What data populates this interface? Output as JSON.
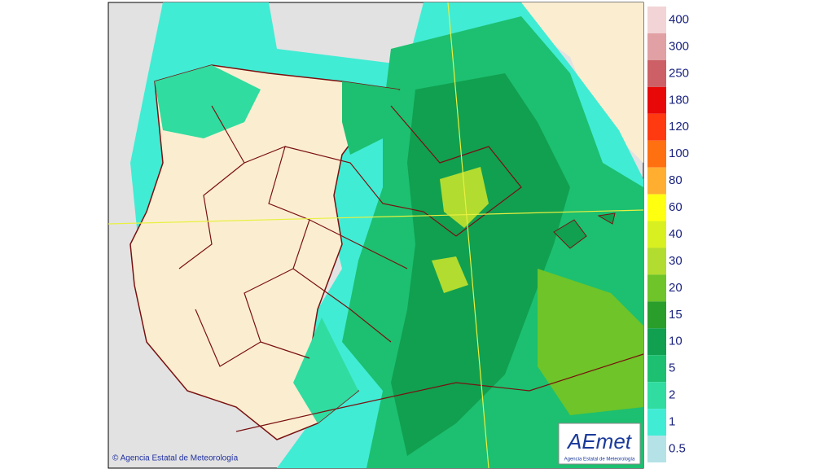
{
  "legend": {
    "levels": [
      {
        "value": 400,
        "color": "#f2d4d6"
      },
      {
        "value": 300,
        "color": "#e0a0a4"
      },
      {
        "value": 250,
        "color": "#cc6066"
      },
      {
        "value": 180,
        "color": "#e80808"
      },
      {
        "value": 120,
        "color": "#ff3a10"
      },
      {
        "value": 100,
        "color": "#ff7010"
      },
      {
        "value": 80,
        "color": "#ffae30"
      },
      {
        "value": 60,
        "color": "#ffff10"
      },
      {
        "value": 40,
        "color": "#d8f020"
      },
      {
        "value": 30,
        "color": "#b2dc30"
      },
      {
        "value": 20,
        "color": "#6ec428"
      },
      {
        "value": 15,
        "color": "#2a9e2a"
      },
      {
        "value": 10,
        "color": "#10a050"
      },
      {
        "value": 5,
        "color": "#1cc070"
      },
      {
        "value": 2,
        "color": "#30dca0"
      },
      {
        "value": 1,
        "color": "#40ecd4"
      },
      {
        "value": 0.5,
        "color": "#b4e2e6"
      }
    ]
  },
  "copyright": "© Agencia Estatal de Meteorología",
  "logo": {
    "name": "AEmet",
    "subtitle": "Agencia Estatal de Meteorología"
  }
}
